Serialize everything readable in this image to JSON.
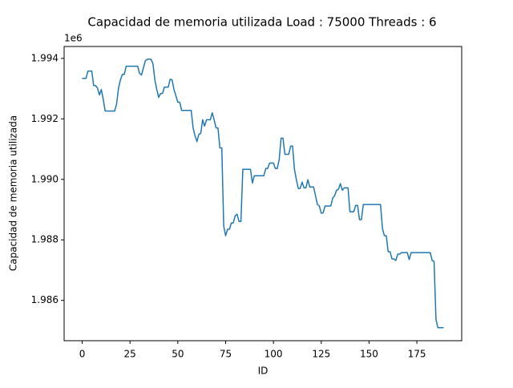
{
  "chart_data": {
    "type": "line",
    "title": "Capacidad de memoria utilizada Load : 75000 Threads : 6",
    "xlabel": "ID",
    "ylabel": "Capacidad de memoria utilizada",
    "y_offset_label": "1e6",
    "color": "#1f77b4",
    "x": [
      0,
      1,
      2,
      3,
      4,
      5,
      6,
      7,
      8,
      9,
      10,
      11,
      12,
      13,
      14,
      15,
      16,
      17,
      18,
      19,
      20,
      21,
      22,
      23,
      24,
      25,
      26,
      27,
      28,
      29,
      30,
      31,
      32,
      33,
      34,
      35,
      36,
      37,
      38,
      39,
      40,
      41,
      42,
      43,
      44,
      45,
      46,
      47,
      48,
      49,
      50,
      51,
      52,
      53,
      54,
      55,
      56,
      57,
      58,
      59,
      60,
      61,
      62,
      63,
      64,
      65,
      66,
      67,
      68,
      69,
      70,
      71,
      72,
      73,
      74,
      75,
      76,
      77,
      78,
      79,
      80,
      81,
      82,
      83,
      84,
      85,
      86,
      87,
      88,
      89,
      90,
      91,
      92,
      93,
      94,
      95,
      96,
      97,
      98,
      99,
      100,
      101,
      102,
      103,
      104,
      105,
      106,
      107,
      108,
      109,
      110,
      111,
      112,
      113,
      114,
      115,
      116,
      117,
      118,
      119,
      120,
      121,
      122,
      123,
      124,
      125,
      126,
      127,
      128,
      129,
      130,
      131,
      132,
      133,
      134,
      135,
      136,
      137,
      138,
      139,
      140,
      141,
      142,
      143,
      144,
      145,
      146,
      147,
      148,
      149,
      150,
      151,
      152,
      153,
      154,
      155,
      156,
      157,
      158,
      159,
      160,
      161,
      162,
      163,
      164,
      165,
      166,
      167,
      168,
      169,
      170,
      171,
      172,
      173,
      174,
      175,
      176,
      177,
      178,
      179,
      180,
      181,
      182,
      183,
      184,
      185,
      186,
      187,
      188,
      189
    ],
    "values": [
      1993340,
      1993340,
      1993340,
      1993580,
      1993580,
      1993580,
      1993100,
      1993100,
      1993020,
      1992790,
      1992970,
      1992650,
      1992260,
      1992260,
      1992260,
      1992260,
      1992260,
      1992260,
      1992500,
      1993020,
      1993290,
      1993470,
      1993470,
      1993740,
      1993740,
      1993740,
      1993740,
      1993740,
      1993740,
      1993740,
      1993500,
      1993450,
      1993680,
      1993920,
      1993970,
      1993970,
      1993970,
      1993820,
      1993290,
      1992970,
      1992710,
      1992840,
      1992840,
      1993050,
      1993050,
      1993050,
      1993310,
      1993290,
      1992970,
      1992760,
      1992550,
      1992550,
      1992280,
      1992280,
      1992280,
      1992280,
      1992280,
      1992280,
      1991700,
      1991440,
      1991250,
      1991490,
      1991520,
      1991970,
      1991760,
      1991970,
      1991970,
      1991970,
      1992200,
      1991970,
      1991700,
      1991700,
      1991040,
      1991040,
      1988460,
      1988140,
      1988350,
      1988350,
      1988560,
      1988560,
      1988800,
      1988850,
      1988610,
      1988610,
      1990330,
      1990330,
      1990330,
      1990330,
      1990330,
      1989880,
      1990120,
      1990120,
      1990120,
      1990120,
      1990120,
      1990120,
      1990360,
      1990360,
      1990540,
      1990540,
      1990540,
      1990360,
      1990360,
      1990650,
      1991360,
      1991360,
      1990830,
      1990830,
      1990830,
      1991100,
      1991100,
      1990330,
      1989990,
      1989700,
      1989700,
      1989910,
      1989720,
      1989720,
      1989990,
      1989750,
      1989750,
      1989750,
      1989460,
      1989170,
      1989120,
      1988880,
      1988900,
      1989120,
      1989120,
      1989120,
      1989120,
      1989380,
      1989460,
      1989640,
      1989670,
      1989860,
      1989640,
      1989720,
      1989720,
      1989720,
      1988930,
      1988930,
      1988930,
      1989140,
      1989140,
      1988670,
      1988670,
      1989170,
      1989170,
      1989170,
      1989170,
      1989170,
      1989170,
      1989170,
      1989170,
      1989170,
      1989170,
      1988380,
      1988140,
      1988140,
      1987610,
      1987610,
      1987370,
      1987370,
      1987320,
      1987530,
      1987530,
      1987580,
      1987580,
      1987580,
      1987580,
      1987350,
      1987580,
      1987580,
      1987580,
      1987580,
      1987580,
      1987580,
      1987580,
      1987580,
      1987580,
      1987580,
      1987580,
      1987320,
      1987290,
      1985370,
      1985100,
      1985100,
      1985100,
      1985100
    ],
    "xlim": [
      -9.45,
      198.45
    ],
    "xticks": [
      0,
      25,
      50,
      75,
      100,
      125,
      150,
      175
    ],
    "ylim": [
      1984668,
      1994392
    ],
    "yticks": [
      {
        "value": 1986000,
        "label": "1.986"
      },
      {
        "value": 1988000,
        "label": "1.988"
      },
      {
        "value": 1990000,
        "label": "1.990"
      },
      {
        "value": 1992000,
        "label": "1.992"
      },
      {
        "value": 1994000,
        "label": "1.994"
      }
    ]
  }
}
